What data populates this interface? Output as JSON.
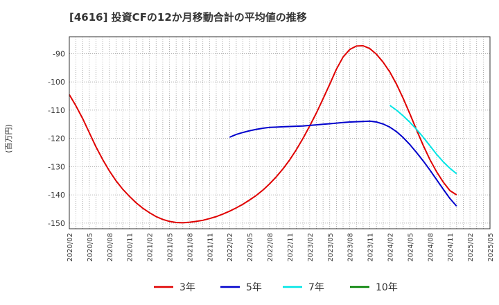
{
  "title": "[4616]  投資CFの12か月移動合計の平均値の推移",
  "chart_data": {
    "type": "line",
    "ylabel": "(百万円)",
    "ylim": [
      -152,
      -84
    ],
    "yticks": [
      -90,
      -100,
      -110,
      -120,
      -130,
      -140,
      -150
    ],
    "ytick_labels": [
      "-90",
      "-100",
      "-110",
      "-120",
      "-130",
      "-140",
      "-150"
    ],
    "x_tick_labels": [
      "2020/02",
      "2020/05",
      "2020/08",
      "2020/11",
      "2021/02",
      "2021/05",
      "2021/08",
      "2021/11",
      "2022/02",
      "2022/05",
      "2022/08",
      "2022/11",
      "2023/02",
      "2023/05",
      "2023/08",
      "2023/11",
      "2024/02",
      "2024/05",
      "2024/08",
      "2024/11",
      "2025/02",
      "2025/05"
    ],
    "grid": true,
    "legend_position": "bottom",
    "series": [
      {
        "name": "3年",
        "color": "#e00000",
        "points": [
          [
            "2020/02",
            -104.5
          ],
          [
            "2020/03",
            -108.5
          ],
          [
            "2020/04",
            -113
          ],
          [
            "2020/05",
            -118
          ],
          [
            "2020/06",
            -123
          ],
          [
            "2020/07",
            -127.5
          ],
          [
            "2020/08",
            -131.5
          ],
          [
            "2020/09",
            -135
          ],
          [
            "2020/10",
            -138
          ],
          [
            "2020/11",
            -140.5
          ],
          [
            "2020/12",
            -142.8
          ],
          [
            "2021/01",
            -144.7
          ],
          [
            "2021/02",
            -146.3
          ],
          [
            "2021/03",
            -147.7
          ],
          [
            "2021/04",
            -148.7
          ],
          [
            "2021/05",
            -149.4
          ],
          [
            "2021/06",
            -149.8
          ],
          [
            "2021/07",
            -149.9
          ],
          [
            "2021/08",
            -149.7
          ],
          [
            "2021/09",
            -149.4
          ],
          [
            "2021/10",
            -149
          ],
          [
            "2021/11",
            -148.4
          ],
          [
            "2021/12",
            -147.7
          ],
          [
            "2022/01",
            -146.8
          ],
          [
            "2022/02",
            -145.8
          ],
          [
            "2022/03",
            -144.6
          ],
          [
            "2022/04",
            -143.3
          ],
          [
            "2022/05",
            -141.8
          ],
          [
            "2022/06",
            -140.2
          ],
          [
            "2022/07",
            -138.3
          ],
          [
            "2022/08",
            -136.1
          ],
          [
            "2022/09",
            -133.6
          ],
          [
            "2022/10",
            -130.8
          ],
          [
            "2022/11",
            -127.6
          ],
          [
            "2022/12",
            -124
          ],
          [
            "2023/01",
            -120
          ],
          [
            "2023/02",
            -115.6
          ],
          [
            "2023/03",
            -111
          ],
          [
            "2023/04",
            -106
          ],
          [
            "2023/05",
            -100.8
          ],
          [
            "2023/06",
            -95.5
          ],
          [
            "2023/07",
            -91.2
          ],
          [
            "2023/08",
            -88.5
          ],
          [
            "2023/09",
            -87.3
          ],
          [
            "2023/10",
            -87.2
          ],
          [
            "2023/11",
            -88.2
          ],
          [
            "2023/12",
            -90.2
          ],
          [
            "2024/01",
            -93
          ],
          [
            "2024/02",
            -96.5
          ],
          [
            "2024/03",
            -100.8
          ],
          [
            "2024/04",
            -105.8
          ],
          [
            "2024/05",
            -111.3
          ],
          [
            "2024/06",
            -117
          ],
          [
            "2024/07",
            -122.5
          ],
          [
            "2024/08",
            -127.5
          ],
          [
            "2024/09",
            -131.8
          ],
          [
            "2024/10",
            -135.5
          ],
          [
            "2024/11",
            -138.5
          ],
          [
            "2024/12",
            -140
          ]
        ]
      },
      {
        "name": "5年",
        "color": "#0000cc",
        "points": [
          [
            "2022/02",
            -119.6
          ],
          [
            "2022/03",
            -118.6
          ],
          [
            "2022/04",
            -117.9
          ],
          [
            "2022/05",
            -117.3
          ],
          [
            "2022/06",
            -116.8
          ],
          [
            "2022/07",
            -116.4
          ],
          [
            "2022/08",
            -116.1
          ],
          [
            "2022/09",
            -116
          ],
          [
            "2022/10",
            -115.9
          ],
          [
            "2022/11",
            -115.8
          ],
          [
            "2022/12",
            -115.7
          ],
          [
            "2023/01",
            -115.6
          ],
          [
            "2023/02",
            -115.4
          ],
          [
            "2023/03",
            -115.2
          ],
          [
            "2023/04",
            -115
          ],
          [
            "2023/05",
            -114.8
          ],
          [
            "2023/06",
            -114.6
          ],
          [
            "2023/07",
            -114.4
          ],
          [
            "2023/08",
            -114.2
          ],
          [
            "2023/09",
            -114.1
          ],
          [
            "2023/10",
            -114
          ],
          [
            "2023/11",
            -113.9
          ],
          [
            "2023/12",
            -114.2
          ],
          [
            "2024/01",
            -114.9
          ],
          [
            "2024/02",
            -116
          ],
          [
            "2024/03",
            -117.6
          ],
          [
            "2024/04",
            -119.7
          ],
          [
            "2024/05",
            -122.2
          ],
          [
            "2024/06",
            -125
          ],
          [
            "2024/07",
            -128
          ],
          [
            "2024/08",
            -131.2
          ],
          [
            "2024/09",
            -134.6
          ],
          [
            "2024/10",
            -138
          ],
          [
            "2024/11",
            -141.3
          ],
          [
            "2024/12",
            -144
          ]
        ]
      },
      {
        "name": "7年",
        "color": "#00e5e5",
        "points": [
          [
            "2024/02",
            -108.3
          ],
          [
            "2024/03",
            -110
          ],
          [
            "2024/04",
            -112
          ],
          [
            "2024/05",
            -114.3
          ],
          [
            "2024/06",
            -116.8
          ],
          [
            "2024/07",
            -119.6
          ],
          [
            "2024/08",
            -122.6
          ],
          [
            "2024/09",
            -125.6
          ],
          [
            "2024/10",
            -128.3
          ],
          [
            "2024/11",
            -130.6
          ],
          [
            "2024/12",
            -132.5
          ]
        ]
      },
      {
        "name": "10年",
        "color": "#008000",
        "points": []
      }
    ]
  }
}
